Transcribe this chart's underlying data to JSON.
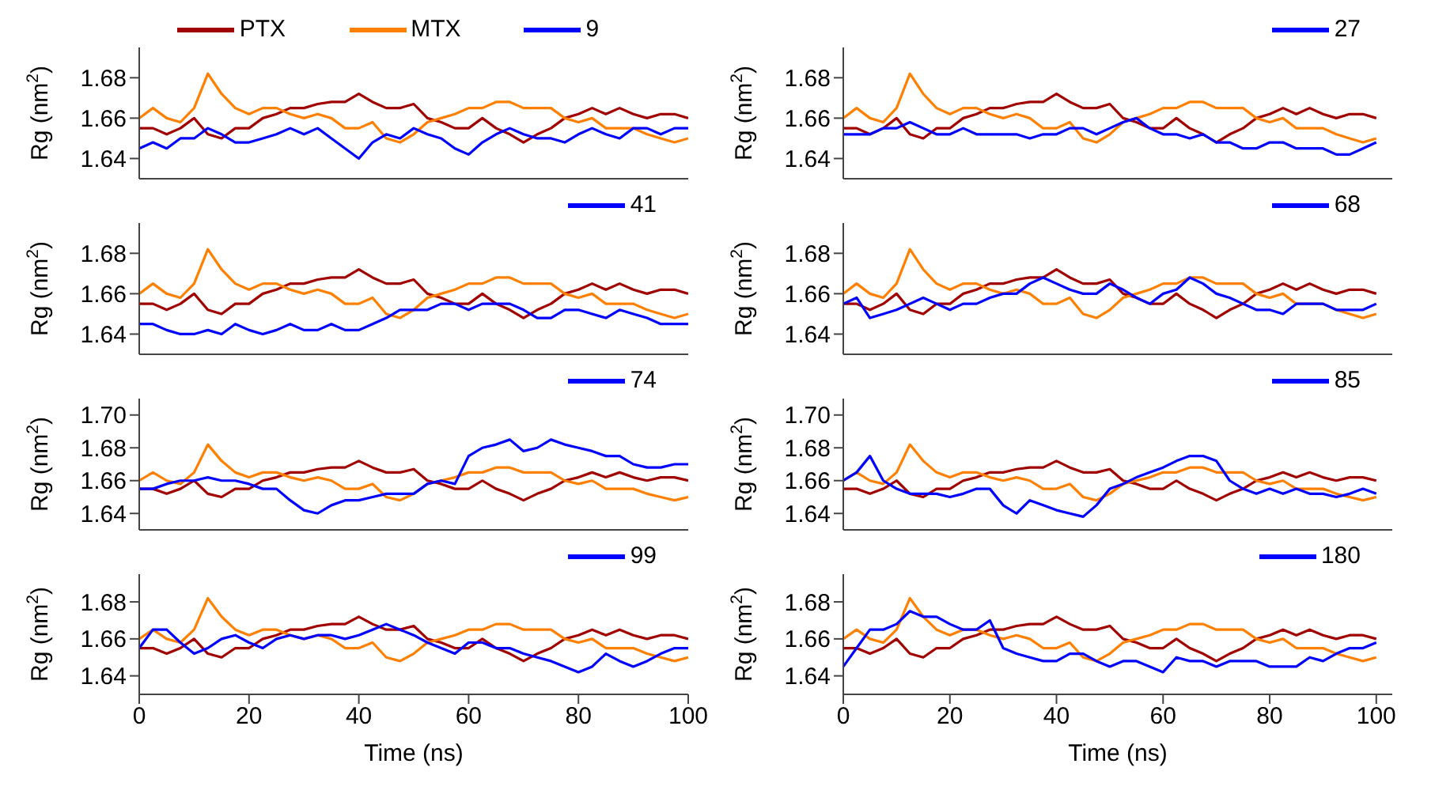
{
  "chart_data": [
    {
      "type": "line",
      "ylabel": "Rg (nm$^{2}$)",
      "tick_labels": "y",
      "legend": "top",
      "xlim": [
        0,
        100
      ],
      "xticks": [
        0,
        20,
        40,
        60,
        80,
        100
      ],
      "ylim": [
        1.63,
        1.695
      ],
      "yticks": [
        1.64,
        1.66,
        1.68
      ],
      "x": [
        0,
        2.5,
        5,
        7.5,
        10,
        12.5,
        15,
        17.5,
        20,
        22.5,
        25,
        27.5,
        30,
        32.5,
        35,
        37.5,
        40,
        42.5,
        45,
        47.5,
        50,
        52.5,
        55,
        57.5,
        60,
        62.5,
        65,
        67.5,
        70,
        72.5,
        75,
        77.5,
        80,
        82.5,
        85,
        87.5,
        90,
        92.5,
        95,
        97.5,
        100
      ],
      "series": [
        {
          "name": "PTX",
          "color": "#a00000",
          "values": [
            1.655,
            1.655,
            1.652,
            1.655,
            1.66,
            1.652,
            1.65,
            1.655,
            1.655,
            1.66,
            1.662,
            1.665,
            1.665,
            1.667,
            1.668,
            1.668,
            1.672,
            1.668,
            1.665,
            1.665,
            1.667,
            1.66,
            1.658,
            1.655,
            1.655,
            1.66,
            1.655,
            1.652,
            1.648,
            1.652,
            1.655,
            1.66,
            1.662,
            1.665,
            1.662,
            1.665,
            1.662,
            1.66,
            1.662,
            1.662,
            1.66
          ]
        },
        {
          "name": "MTX",
          "color": "#ff8000",
          "values": [
            1.66,
            1.665,
            1.66,
            1.658,
            1.665,
            1.682,
            1.672,
            1.665,
            1.662,
            1.665,
            1.665,
            1.662,
            1.66,
            1.662,
            1.66,
            1.655,
            1.655,
            1.658,
            1.65,
            1.648,
            1.652,
            1.658,
            1.66,
            1.662,
            1.665,
            1.665,
            1.668,
            1.668,
            1.665,
            1.665,
            1.665,
            1.66,
            1.658,
            1.66,
            1.655,
            1.655,
            1.655,
            1.652,
            1.65,
            1.648,
            1.65
          ]
        },
        {
          "name": "9",
          "color": "#0000ff",
          "values": [
            1.645,
            1.648,
            1.645,
            1.65,
            1.65,
            1.655,
            1.652,
            1.648,
            1.648,
            1.65,
            1.652,
            1.655,
            1.652,
            1.655,
            1.65,
            1.645,
            1.64,
            1.648,
            1.652,
            1.65,
            1.655,
            1.652,
            1.65,
            1.645,
            1.642,
            1.648,
            1.652,
            1.655,
            1.652,
            1.65,
            1.65,
            1.648,
            1.652,
            1.655,
            1.652,
            1.65,
            1.655,
            1.655,
            1.652,
            1.655,
            1.655
          ]
        }
      ]
    },
    {
      "type": "line",
      "ylabel": "Rg (nm$^{2}$)",
      "tick_labels": "y",
      "legend": "top right",
      "xlim": [
        0,
        103
      ],
      "xticks": [
        0,
        20,
        40,
        60,
        80,
        100
      ],
      "ylim": [
        1.63,
        1.695
      ],
      "yticks": [
        1.64,
        1.66,
        1.68
      ],
      "x": [
        0,
        2.5,
        5,
        7.5,
        10,
        12.5,
        15,
        17.5,
        20,
        22.5,
        25,
        27.5,
        30,
        32.5,
        35,
        37.5,
        40,
        42.5,
        45,
        47.5,
        50,
        52.5,
        55,
        57.5,
        60,
        62.5,
        65,
        67.5,
        70,
        72.5,
        75,
        77.5,
        80,
        82.5,
        85,
        87.5,
        90,
        92.5,
        95,
        97.5,
        100
      ],
      "series": [
        {
          "color": "#a00000",
          "values": [
            1.655,
            1.655,
            1.652,
            1.655,
            1.66,
            1.652,
            1.65,
            1.655,
            1.655,
            1.66,
            1.662,
            1.665,
            1.665,
            1.667,
            1.668,
            1.668,
            1.672,
            1.668,
            1.665,
            1.665,
            1.667,
            1.66,
            1.658,
            1.655,
            1.655,
            1.66,
            1.655,
            1.652,
            1.648,
            1.652,
            1.655,
            1.66,
            1.662,
            1.665,
            1.662,
            1.665,
            1.662,
            1.66,
            1.662,
            1.662,
            1.66
          ]
        },
        {
          "color": "#ff8000",
          "values": [
            1.66,
            1.665,
            1.66,
            1.658,
            1.665,
            1.682,
            1.672,
            1.665,
            1.662,
            1.665,
            1.665,
            1.662,
            1.66,
            1.662,
            1.66,
            1.655,
            1.655,
            1.658,
            1.65,
            1.648,
            1.652,
            1.658,
            1.66,
            1.662,
            1.665,
            1.665,
            1.668,
            1.668,
            1.665,
            1.665,
            1.665,
            1.66,
            1.658,
            1.66,
            1.655,
            1.655,
            1.655,
            1.652,
            1.65,
            1.648,
            1.65
          ]
        },
        {
          "name": "27",
          "color": "#0000ff",
          "values": [
            1.652,
            1.652,
            1.652,
            1.655,
            1.655,
            1.658,
            1.655,
            1.652,
            1.652,
            1.655,
            1.652,
            1.652,
            1.652,
            1.652,
            1.65,
            1.652,
            1.652,
            1.655,
            1.655,
            1.652,
            1.655,
            1.658,
            1.66,
            1.655,
            1.652,
            1.652,
            1.65,
            1.652,
            1.648,
            1.648,
            1.645,
            1.645,
            1.648,
            1.648,
            1.645,
            1.645,
            1.645,
            1.642,
            1.642,
            1.645,
            1.648
          ]
        }
      ]
    },
    {
      "type": "line",
      "ylabel": "Rg (nm$^{2}$)",
      "tick_labels": "y",
      "legend": "top right",
      "xlim": [
        0,
        100
      ],
      "xticks": [
        0,
        20,
        40,
        60,
        80,
        100
      ],
      "ylim": [
        1.63,
        1.695
      ],
      "yticks": [
        1.64,
        1.66,
        1.68
      ],
      "x": [
        0,
        2.5,
        5,
        7.5,
        10,
        12.5,
        15,
        17.5,
        20,
        22.5,
        25,
        27.5,
        30,
        32.5,
        35,
        37.5,
        40,
        42.5,
        45,
        47.5,
        50,
        52.5,
        55,
        57.5,
        60,
        62.5,
        65,
        67.5,
        70,
        72.5,
        75,
        77.5,
        80,
        82.5,
        85,
        87.5,
        90,
        92.5,
        95,
        97.5,
        100
      ],
      "series": [
        {
          "color": "#a00000",
          "values": [
            1.655,
            1.655,
            1.652,
            1.655,
            1.66,
            1.652,
            1.65,
            1.655,
            1.655,
            1.66,
            1.662,
            1.665,
            1.665,
            1.667,
            1.668,
            1.668,
            1.672,
            1.668,
            1.665,
            1.665,
            1.667,
            1.66,
            1.658,
            1.655,
            1.655,
            1.66,
            1.655,
            1.652,
            1.648,
            1.652,
            1.655,
            1.66,
            1.662,
            1.665,
            1.662,
            1.665,
            1.662,
            1.66,
            1.662,
            1.662,
            1.66
          ]
        },
        {
          "color": "#ff8000",
          "values": [
            1.66,
            1.665,
            1.66,
            1.658,
            1.665,
            1.682,
            1.672,
            1.665,
            1.662,
            1.665,
            1.665,
            1.662,
            1.66,
            1.662,
            1.66,
            1.655,
            1.655,
            1.658,
            1.65,
            1.648,
            1.652,
            1.658,
            1.66,
            1.662,
            1.665,
            1.665,
            1.668,
            1.668,
            1.665,
            1.665,
            1.665,
            1.66,
            1.658,
            1.66,
            1.655,
            1.655,
            1.655,
            1.652,
            1.65,
            1.648,
            1.65
          ]
        },
        {
          "name": "41",
          "color": "#0000ff",
          "values": [
            1.645,
            1.645,
            1.642,
            1.64,
            1.64,
            1.642,
            1.64,
            1.645,
            1.642,
            1.64,
            1.642,
            1.645,
            1.642,
            1.642,
            1.645,
            1.642,
            1.642,
            1.645,
            1.648,
            1.652,
            1.652,
            1.652,
            1.655,
            1.655,
            1.652,
            1.655,
            1.655,
            1.655,
            1.652,
            1.648,
            1.648,
            1.652,
            1.652,
            1.65,
            1.648,
            1.652,
            1.65,
            1.648,
            1.645,
            1.645,
            1.645
          ]
        }
      ]
    },
    {
      "type": "line",
      "ylabel": "Rg (nm$^{2}$)",
      "tick_labels": "y",
      "legend": "top right",
      "xlim": [
        0,
        103
      ],
      "xticks": [
        0,
        20,
        40,
        60,
        80,
        100
      ],
      "ylim": [
        1.63,
        1.695
      ],
      "yticks": [
        1.64,
        1.66,
        1.68
      ],
      "x": [
        0,
        2.5,
        5,
        7.5,
        10,
        12.5,
        15,
        17.5,
        20,
        22.5,
        25,
        27.5,
        30,
        32.5,
        35,
        37.5,
        40,
        42.5,
        45,
        47.5,
        50,
        52.5,
        55,
        57.5,
        60,
        62.5,
        65,
        67.5,
        70,
        72.5,
        75,
        77.5,
        80,
        82.5,
        85,
        87.5,
        90,
        92.5,
        95,
        97.5,
        100
      ],
      "series": [
        {
          "color": "#a00000",
          "values": [
            1.655,
            1.655,
            1.652,
            1.655,
            1.66,
            1.652,
            1.65,
            1.655,
            1.655,
            1.66,
            1.662,
            1.665,
            1.665,
            1.667,
            1.668,
            1.668,
            1.672,
            1.668,
            1.665,
            1.665,
            1.667,
            1.66,
            1.658,
            1.655,
            1.655,
            1.66,
            1.655,
            1.652,
            1.648,
            1.652,
            1.655,
            1.66,
            1.662,
            1.665,
            1.662,
            1.665,
            1.662,
            1.66,
            1.662,
            1.662,
            1.66
          ]
        },
        {
          "color": "#ff8000",
          "values": [
            1.66,
            1.665,
            1.66,
            1.658,
            1.665,
            1.682,
            1.672,
            1.665,
            1.662,
            1.665,
            1.665,
            1.662,
            1.66,
            1.662,
            1.66,
            1.655,
            1.655,
            1.658,
            1.65,
            1.648,
            1.652,
            1.658,
            1.66,
            1.662,
            1.665,
            1.665,
            1.668,
            1.668,
            1.665,
            1.665,
            1.665,
            1.66,
            1.658,
            1.66,
            1.655,
            1.655,
            1.655,
            1.652,
            1.65,
            1.648,
            1.65
          ]
        },
        {
          "name": "68",
          "color": "#0000ff",
          "values": [
            1.655,
            1.658,
            1.648,
            1.65,
            1.652,
            1.655,
            1.658,
            1.655,
            1.652,
            1.655,
            1.655,
            1.658,
            1.66,
            1.66,
            1.665,
            1.668,
            1.665,
            1.662,
            1.66,
            1.66,
            1.665,
            1.662,
            1.658,
            1.655,
            1.66,
            1.662,
            1.668,
            1.665,
            1.66,
            1.658,
            1.655,
            1.652,
            1.652,
            1.65,
            1.655,
            1.655,
            1.655,
            1.652,
            1.652,
            1.652,
            1.655
          ]
        }
      ]
    },
    {
      "type": "line",
      "ylabel": "Rg (nm$^{2}$)",
      "tick_labels": "y",
      "legend": "top right",
      "xlim": [
        0,
        100
      ],
      "xticks": [
        0,
        20,
        40,
        60,
        80,
        100
      ],
      "ylim": [
        1.63,
        1.71
      ],
      "yticks": [
        1.64,
        1.66,
        1.68,
        {
          "value": 1.7,
          "label": "1.70"
        }
      ],
      "x": [
        0,
        2.5,
        5,
        7.5,
        10,
        12.5,
        15,
        17.5,
        20,
        22.5,
        25,
        27.5,
        30,
        32.5,
        35,
        37.5,
        40,
        42.5,
        45,
        47.5,
        50,
        52.5,
        55,
        57.5,
        60,
        62.5,
        65,
        67.5,
        70,
        72.5,
        75,
        77.5,
        80,
        82.5,
        85,
        87.5,
        90,
        92.5,
        95,
        97.5,
        100
      ],
      "series": [
        {
          "color": "#a00000",
          "values": [
            1.655,
            1.655,
            1.652,
            1.655,
            1.66,
            1.652,
            1.65,
            1.655,
            1.655,
            1.66,
            1.662,
            1.665,
            1.665,
            1.667,
            1.668,
            1.668,
            1.672,
            1.668,
            1.665,
            1.665,
            1.667,
            1.66,
            1.658,
            1.655,
            1.655,
            1.66,
            1.655,
            1.652,
            1.648,
            1.652,
            1.655,
            1.66,
            1.662,
            1.665,
            1.662,
            1.665,
            1.662,
            1.66,
            1.662,
            1.662,
            1.66
          ]
        },
        {
          "color": "#ff8000",
          "values": [
            1.66,
            1.665,
            1.66,
            1.658,
            1.665,
            1.682,
            1.672,
            1.665,
            1.662,
            1.665,
            1.665,
            1.662,
            1.66,
            1.662,
            1.66,
            1.655,
            1.655,
            1.658,
            1.65,
            1.648,
            1.652,
            1.658,
            1.66,
            1.662,
            1.665,
            1.665,
            1.668,
            1.668,
            1.665,
            1.665,
            1.665,
            1.66,
            1.658,
            1.66,
            1.655,
            1.655,
            1.655,
            1.652,
            1.65,
            1.648,
            1.65
          ]
        },
        {
          "name": "74",
          "color": "#0000ff",
          "values": [
            1.655,
            1.655,
            1.658,
            1.66,
            1.66,
            1.662,
            1.66,
            1.66,
            1.658,
            1.655,
            1.655,
            1.648,
            1.642,
            1.64,
            1.645,
            1.648,
            1.648,
            1.65,
            1.652,
            1.652,
            1.652,
            1.658,
            1.66,
            1.658,
            1.675,
            1.68,
            1.682,
            1.685,
            1.678,
            1.68,
            1.685,
            1.682,
            1.68,
            1.678,
            1.675,
            1.675,
            1.67,
            1.668,
            1.668,
            1.67,
            1.67
          ]
        }
      ]
    },
    {
      "type": "line",
      "ylabel": "Rg (nm$^{2}$)",
      "tick_labels": "y",
      "legend": "top right",
      "xlim": [
        0,
        103
      ],
      "xticks": [
        0,
        20,
        40,
        60,
        80,
        100
      ],
      "ylim": [
        1.63,
        1.71
      ],
      "yticks": [
        1.64,
        1.66,
        1.68,
        {
          "value": 1.7,
          "label": "1.70"
        }
      ],
      "x": [
        0,
        2.5,
        5,
        7.5,
        10,
        12.5,
        15,
        17.5,
        20,
        22.5,
        25,
        27.5,
        30,
        32.5,
        35,
        37.5,
        40,
        42.5,
        45,
        47.5,
        50,
        52.5,
        55,
        57.5,
        60,
        62.5,
        65,
        67.5,
        70,
        72.5,
        75,
        77.5,
        80,
        82.5,
        85,
        87.5,
        90,
        92.5,
        95,
        97.5,
        100
      ],
      "series": [
        {
          "color": "#a00000",
          "values": [
            1.655,
            1.655,
            1.652,
            1.655,
            1.66,
            1.652,
            1.65,
            1.655,
            1.655,
            1.66,
            1.662,
            1.665,
            1.665,
            1.667,
            1.668,
            1.668,
            1.672,
            1.668,
            1.665,
            1.665,
            1.667,
            1.66,
            1.658,
            1.655,
            1.655,
            1.66,
            1.655,
            1.652,
            1.648,
            1.652,
            1.655,
            1.66,
            1.662,
            1.665,
            1.662,
            1.665,
            1.662,
            1.66,
            1.662,
            1.662,
            1.66
          ]
        },
        {
          "color": "#ff8000",
          "values": [
            1.66,
            1.665,
            1.66,
            1.658,
            1.665,
            1.682,
            1.672,
            1.665,
            1.662,
            1.665,
            1.665,
            1.662,
            1.66,
            1.662,
            1.66,
            1.655,
            1.655,
            1.658,
            1.65,
            1.648,
            1.652,
            1.658,
            1.66,
            1.662,
            1.665,
            1.665,
            1.668,
            1.668,
            1.665,
            1.665,
            1.665,
            1.66,
            1.658,
            1.66,
            1.655,
            1.655,
            1.655,
            1.652,
            1.65,
            1.648,
            1.65
          ]
        },
        {
          "name": "85",
          "color": "#0000ff",
          "values": [
            1.66,
            1.665,
            1.675,
            1.66,
            1.655,
            1.652,
            1.652,
            1.652,
            1.65,
            1.652,
            1.655,
            1.655,
            1.645,
            1.64,
            1.648,
            1.645,
            1.642,
            1.64,
            1.638,
            1.645,
            1.655,
            1.658,
            1.662,
            1.665,
            1.668,
            1.672,
            1.675,
            1.675,
            1.672,
            1.66,
            1.655,
            1.652,
            1.655,
            1.652,
            1.655,
            1.652,
            1.652,
            1.65,
            1.652,
            1.655,
            1.652
          ]
        }
      ]
    },
    {
      "type": "line",
      "ylabel": "Rg (nm$^{2}$)",
      "xlabel": "Time (ns)",
      "legend": "top right",
      "xlim": [
        0,
        100
      ],
      "xticks": [
        0,
        20,
        40,
        60,
        80,
        100
      ],
      "ylim": [
        1.63,
        1.695
      ],
      "yticks": [
        1.64,
        1.66,
        1.68
      ],
      "x": [
        0,
        2.5,
        5,
        7.5,
        10,
        12.5,
        15,
        17.5,
        20,
        22.5,
        25,
        27.5,
        30,
        32.5,
        35,
        37.5,
        40,
        42.5,
        45,
        47.5,
        50,
        52.5,
        55,
        57.5,
        60,
        62.5,
        65,
        67.5,
        70,
        72.5,
        75,
        77.5,
        80,
        82.5,
        85,
        87.5,
        90,
        92.5,
        95,
        97.5,
        100
      ],
      "series": [
        {
          "color": "#a00000",
          "values": [
            1.655,
            1.655,
            1.652,
            1.655,
            1.66,
            1.652,
            1.65,
            1.655,
            1.655,
            1.66,
            1.662,
            1.665,
            1.665,
            1.667,
            1.668,
            1.668,
            1.672,
            1.668,
            1.665,
            1.665,
            1.667,
            1.66,
            1.658,
            1.655,
            1.655,
            1.66,
            1.655,
            1.652,
            1.648,
            1.652,
            1.655,
            1.66,
            1.662,
            1.665,
            1.662,
            1.665,
            1.662,
            1.66,
            1.662,
            1.662,
            1.66
          ]
        },
        {
          "color": "#ff8000",
          "values": [
            1.66,
            1.665,
            1.66,
            1.658,
            1.665,
            1.682,
            1.672,
            1.665,
            1.662,
            1.665,
            1.665,
            1.662,
            1.66,
            1.662,
            1.66,
            1.655,
            1.655,
            1.658,
            1.65,
            1.648,
            1.652,
            1.658,
            1.66,
            1.662,
            1.665,
            1.665,
            1.668,
            1.668,
            1.665,
            1.665,
            1.665,
            1.66,
            1.658,
            1.66,
            1.655,
            1.655,
            1.655,
            1.652,
            1.65,
            1.648,
            1.65
          ]
        },
        {
          "name": "99",
          "color": "#0000ff",
          "values": [
            1.655,
            1.665,
            1.665,
            1.658,
            1.652,
            1.655,
            1.66,
            1.662,
            1.658,
            1.655,
            1.66,
            1.662,
            1.66,
            1.662,
            1.662,
            1.66,
            1.662,
            1.665,
            1.668,
            1.665,
            1.662,
            1.658,
            1.655,
            1.652,
            1.658,
            1.658,
            1.655,
            1.655,
            1.652,
            1.65,
            1.648,
            1.645,
            1.642,
            1.645,
            1.652,
            1.648,
            1.645,
            1.648,
            1.652,
            1.655,
            1.655
          ]
        }
      ]
    },
    {
      "type": "line",
      "ylabel": "Rg (nm$^{2}$)",
      "xlabel": "Time (ns)",
      "legend": "top right",
      "xlim": [
        0,
        103
      ],
      "xticks": [
        0,
        20,
        40,
        60,
        80,
        100
      ],
      "ylim": [
        1.63,
        1.695
      ],
      "yticks": [
        1.64,
        1.66,
        1.68
      ],
      "x": [
        0,
        2.5,
        5,
        7.5,
        10,
        12.5,
        15,
        17.5,
        20,
        22.5,
        25,
        27.5,
        30,
        32.5,
        35,
        37.5,
        40,
        42.5,
        45,
        47.5,
        50,
        52.5,
        55,
        57.5,
        60,
        62.5,
        65,
        67.5,
        70,
        72.5,
        75,
        77.5,
        80,
        82.5,
        85,
        87.5,
        90,
        92.5,
        95,
        97.5,
        100
      ],
      "series": [
        {
          "color": "#a00000",
          "values": [
            1.655,
            1.655,
            1.652,
            1.655,
            1.66,
            1.652,
            1.65,
            1.655,
            1.655,
            1.66,
            1.662,
            1.665,
            1.665,
            1.667,
            1.668,
            1.668,
            1.672,
            1.668,
            1.665,
            1.665,
            1.667,
            1.66,
            1.658,
            1.655,
            1.655,
            1.66,
            1.655,
            1.652,
            1.648,
            1.652,
            1.655,
            1.66,
            1.662,
            1.665,
            1.662,
            1.665,
            1.662,
            1.66,
            1.662,
            1.662,
            1.66
          ]
        },
        {
          "color": "#ff8000",
          "values": [
            1.66,
            1.665,
            1.66,
            1.658,
            1.665,
            1.682,
            1.672,
            1.665,
            1.662,
            1.665,
            1.665,
            1.662,
            1.66,
            1.662,
            1.66,
            1.655,
            1.655,
            1.658,
            1.65,
            1.648,
            1.652,
            1.658,
            1.66,
            1.662,
            1.665,
            1.665,
            1.668,
            1.668,
            1.665,
            1.665,
            1.665,
            1.66,
            1.658,
            1.66,
            1.655,
            1.655,
            1.655,
            1.652,
            1.65,
            1.648,
            1.65
          ]
        },
        {
          "name": "180",
          "color": "#0000ff",
          "values": [
            1.645,
            1.655,
            1.665,
            1.665,
            1.668,
            1.675,
            1.672,
            1.672,
            1.668,
            1.665,
            1.665,
            1.67,
            1.655,
            1.652,
            1.65,
            1.648,
            1.648,
            1.652,
            1.652,
            1.648,
            1.645,
            1.648,
            1.648,
            1.645,
            1.642,
            1.65,
            1.648,
            1.648,
            1.645,
            1.648,
            1.648,
            1.648,
            1.645,
            1.645,
            1.645,
            1.65,
            1.648,
            1.652,
            1.655,
            1.655,
            1.658
          ]
        }
      ]
    }
  ]
}
